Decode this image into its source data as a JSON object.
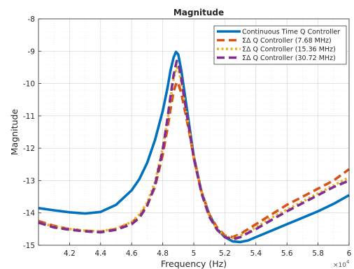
{
  "chart_data": {
    "type": "line",
    "title": "Magnitude",
    "xlabel": "Frequency (Hz)",
    "ylabel": "Magnitude",
    "x_exponent_label": "×10",
    "x_exponent_power": "4",
    "xlim": [
      40000,
      60000
    ],
    "ylim": [
      -15,
      -8
    ],
    "x_ticks": [
      {
        "value": 42000,
        "label": "4.2"
      },
      {
        "value": 44000,
        "label": "4.4"
      },
      {
        "value": 46000,
        "label": "4.6"
      },
      {
        "value": 48000,
        "label": "4.8"
      },
      {
        "value": 50000,
        "label": "5"
      },
      {
        "value": 52000,
        "label": "5.2"
      },
      {
        "value": 54000,
        "label": "5.4"
      },
      {
        "value": 56000,
        "label": "5.6"
      },
      {
        "value": 58000,
        "label": "5.8"
      },
      {
        "value": 60000,
        "label": "6"
      }
    ],
    "y_ticks": [
      {
        "value": -8,
        "label": "-8"
      },
      {
        "value": -9,
        "label": "-9"
      },
      {
        "value": -10,
        "label": "-10"
      },
      {
        "value": -11,
        "label": "-11"
      },
      {
        "value": -12,
        "label": "-12"
      },
      {
        "value": -13,
        "label": "-13"
      },
      {
        "value": -14,
        "label": "-14"
      },
      {
        "value": -15,
        "label": "-15"
      }
    ],
    "grid": true,
    "legend_position": "top-right",
    "series": [
      {
        "name": "Continuous Time Q Controller",
        "color": "#0072BD",
        "style": "solid",
        "points": [
          [
            40000,
            -13.85
          ],
          [
            41000,
            -13.92
          ],
          [
            42000,
            -13.98
          ],
          [
            43000,
            -14.02
          ],
          [
            44000,
            -13.97
          ],
          [
            45000,
            -13.75
          ],
          [
            46000,
            -13.3
          ],
          [
            46500,
            -12.95
          ],
          [
            47000,
            -12.45
          ],
          [
            47500,
            -11.75
          ],
          [
            48000,
            -10.85
          ],
          [
            48300,
            -10.15
          ],
          [
            48500,
            -9.6
          ],
          [
            48700,
            -9.2
          ],
          [
            48850,
            -9.02
          ],
          [
            49000,
            -9.1
          ],
          [
            49200,
            -9.6
          ],
          [
            49500,
            -10.6
          ],
          [
            49800,
            -11.6
          ],
          [
            50000,
            -12.25
          ],
          [
            50500,
            -13.35
          ],
          [
            51000,
            -14.05
          ],
          [
            51500,
            -14.5
          ],
          [
            52000,
            -14.75
          ],
          [
            52500,
            -14.88
          ],
          [
            53000,
            -14.9
          ],
          [
            53500,
            -14.85
          ],
          [
            54000,
            -14.75
          ],
          [
            55000,
            -14.55
          ],
          [
            56000,
            -14.35
          ],
          [
            57000,
            -14.15
          ],
          [
            58000,
            -13.95
          ],
          [
            59000,
            -13.72
          ],
          [
            60000,
            -13.45
          ]
        ]
      },
      {
        "name": "ΣΔ Q Controller (7.68 MHz)",
        "color": "#D95319",
        "style": "dashed",
        "points": [
          [
            40000,
            -14.25
          ],
          [
            41000,
            -14.4
          ],
          [
            42000,
            -14.5
          ],
          [
            43000,
            -14.55
          ],
          [
            44000,
            -14.58
          ],
          [
            45000,
            -14.5
          ],
          [
            46000,
            -14.3
          ],
          [
            46500,
            -14.1
          ],
          [
            47000,
            -13.75
          ],
          [
            47500,
            -13.2
          ],
          [
            48000,
            -12.2
          ],
          [
            48300,
            -11.4
          ],
          [
            48500,
            -10.8
          ],
          [
            48700,
            -10.25
          ],
          [
            48900,
            -9.95
          ],
          [
            49000,
            -10.0
          ],
          [
            49200,
            -10.3
          ],
          [
            49500,
            -11.0
          ],
          [
            49800,
            -11.75
          ],
          [
            50000,
            -12.3
          ],
          [
            50500,
            -13.35
          ],
          [
            51000,
            -14.05
          ],
          [
            51500,
            -14.45
          ],
          [
            52000,
            -14.7
          ],
          [
            52500,
            -14.75
          ],
          [
            53000,
            -14.65
          ],
          [
            53500,
            -14.5
          ],
          [
            54000,
            -14.35
          ],
          [
            55000,
            -14.05
          ],
          [
            56000,
            -13.75
          ],
          [
            57000,
            -13.5
          ],
          [
            58000,
            -13.25
          ],
          [
            59000,
            -13.0
          ],
          [
            60000,
            -12.65
          ]
        ]
      },
      {
        "name": "ΣΔ Q Controller (15.36 MHz)",
        "color": "#EDB120",
        "style": "dotted",
        "points": [
          [
            40000,
            -14.3
          ],
          [
            41000,
            -14.42
          ],
          [
            42000,
            -14.5
          ],
          [
            43000,
            -14.55
          ],
          [
            44000,
            -14.57
          ],
          [
            45000,
            -14.48
          ],
          [
            46000,
            -14.28
          ],
          [
            46500,
            -14.05
          ],
          [
            47000,
            -13.68
          ],
          [
            47500,
            -13.05
          ],
          [
            48000,
            -12.0
          ],
          [
            48300,
            -11.15
          ],
          [
            48500,
            -10.5
          ],
          [
            48700,
            -9.85
          ],
          [
            48900,
            -9.5
          ],
          [
            49000,
            -9.55
          ],
          [
            49200,
            -9.95
          ],
          [
            49500,
            -10.85
          ],
          [
            49800,
            -11.7
          ],
          [
            50000,
            -12.28
          ],
          [
            50500,
            -13.35
          ],
          [
            51000,
            -14.1
          ],
          [
            51500,
            -14.5
          ],
          [
            52000,
            -14.72
          ],
          [
            52500,
            -14.78
          ],
          [
            53000,
            -14.7
          ],
          [
            53500,
            -14.58
          ],
          [
            54000,
            -14.45
          ],
          [
            55000,
            -14.15
          ],
          [
            56000,
            -13.9
          ],
          [
            57000,
            -13.65
          ],
          [
            58000,
            -13.4
          ],
          [
            59000,
            -13.15
          ],
          [
            60000,
            -12.9
          ]
        ]
      },
      {
        "name": "ΣΔ Q Controller (30.72 MHz)",
        "color": "#7E2F8E",
        "style": "dashed",
        "points": [
          [
            40000,
            -14.3
          ],
          [
            41000,
            -14.45
          ],
          [
            42000,
            -14.52
          ],
          [
            43000,
            -14.57
          ],
          [
            44000,
            -14.6
          ],
          [
            45000,
            -14.52
          ],
          [
            46000,
            -14.35
          ],
          [
            46500,
            -14.15
          ],
          [
            47000,
            -13.78
          ],
          [
            47500,
            -13.15
          ],
          [
            48000,
            -12.05
          ],
          [
            48300,
            -11.1
          ],
          [
            48500,
            -10.4
          ],
          [
            48700,
            -9.75
          ],
          [
            48900,
            -9.3
          ],
          [
            49000,
            -9.35
          ],
          [
            49200,
            -9.85
          ],
          [
            49500,
            -10.8
          ],
          [
            49800,
            -11.7
          ],
          [
            50000,
            -12.3
          ],
          [
            50500,
            -13.4
          ],
          [
            51000,
            -14.12
          ],
          [
            51500,
            -14.52
          ],
          [
            52000,
            -14.75
          ],
          [
            52500,
            -14.82
          ],
          [
            53000,
            -14.75
          ],
          [
            53500,
            -14.62
          ],
          [
            54000,
            -14.5
          ],
          [
            55000,
            -14.22
          ],
          [
            56000,
            -13.95
          ],
          [
            57000,
            -13.7
          ],
          [
            58000,
            -13.45
          ],
          [
            59000,
            -13.2
          ],
          [
            60000,
            -13.0
          ]
        ]
      }
    ]
  }
}
